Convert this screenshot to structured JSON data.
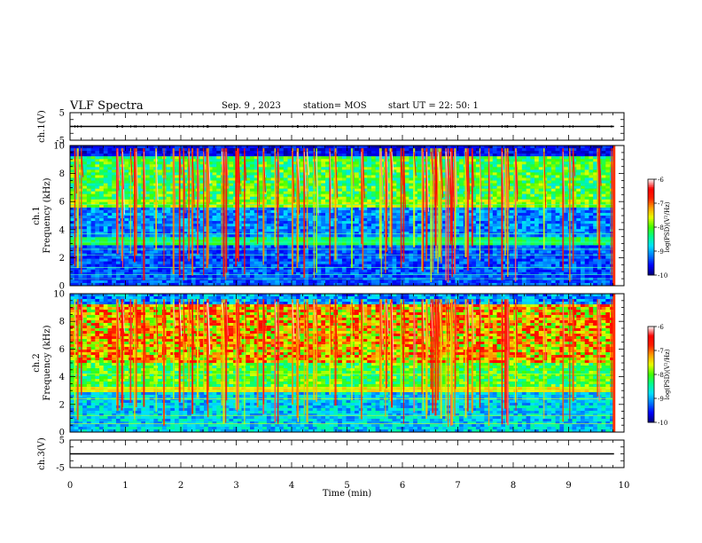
{
  "header": {
    "title": "VLF Spectra",
    "date": "Sep. 9 , 2023",
    "station": "station= MOS",
    "start": "start UT =  22: 50: 1"
  },
  "chart_data": {
    "type": "heatmap",
    "xlabel": "Time (min)",
    "xlim": [
      0,
      10
    ],
    "xticks": [
      "0",
      "1",
      "2",
      "3",
      "4",
      "5",
      "6",
      "7",
      "8",
      "9",
      "10"
    ],
    "panels": [
      {
        "id": "ch1-waveform",
        "ylabel": "ch.1(V)",
        "ylim": [
          -5,
          5
        ],
        "ytick_labels": [
          "5",
          "-5"
        ],
        "trace_level": 0
      },
      {
        "id": "ch1-spectrogram",
        "ylabel_top": "ch.1",
        "ylabel": "Frequency (kHz)",
        "ylim": [
          0,
          10
        ],
        "ytick_labels": [
          "0",
          "2",
          "4",
          "6",
          "8",
          "10"
        ],
        "colorbar": {
          "label": "log(PSD)(V²/Hz)",
          "range": [
            -10,
            -6
          ],
          "tick_labels": [
            "-6",
            "-7",
            "-8",
            "-9",
            "-10"
          ]
        }
      },
      {
        "id": "ch2-spectrogram",
        "ylabel_top": "ch.2",
        "ylabel": "Frequency (kHz)",
        "ylim": [
          0,
          10
        ],
        "ytick_labels": [
          "0",
          "2",
          "4",
          "6",
          "8",
          "10"
        ],
        "colorbar": {
          "label": "log(PSD)(V²/Hz)",
          "range": [
            -10,
            -6
          ],
          "tick_labels": [
            "-6",
            "-7",
            "-8",
            "-9",
            "-10"
          ]
        }
      },
      {
        "id": "ch3-waveform",
        "ylabel": "ch.3(V)",
        "ylim": [
          -5,
          5
        ],
        "ytick_labels": [
          "5",
          "-5"
        ],
        "trace_level": 0
      }
    ],
    "data_end_min": 9.82,
    "colormap": [
      "#00007a",
      "#0000ff",
      "#0078ff",
      "#00e0ff",
      "#00ff90",
      "#40ff00",
      "#e8ff00",
      "#ffa000",
      "#ff2000",
      "#ff0000",
      "#ffffff"
    ]
  }
}
